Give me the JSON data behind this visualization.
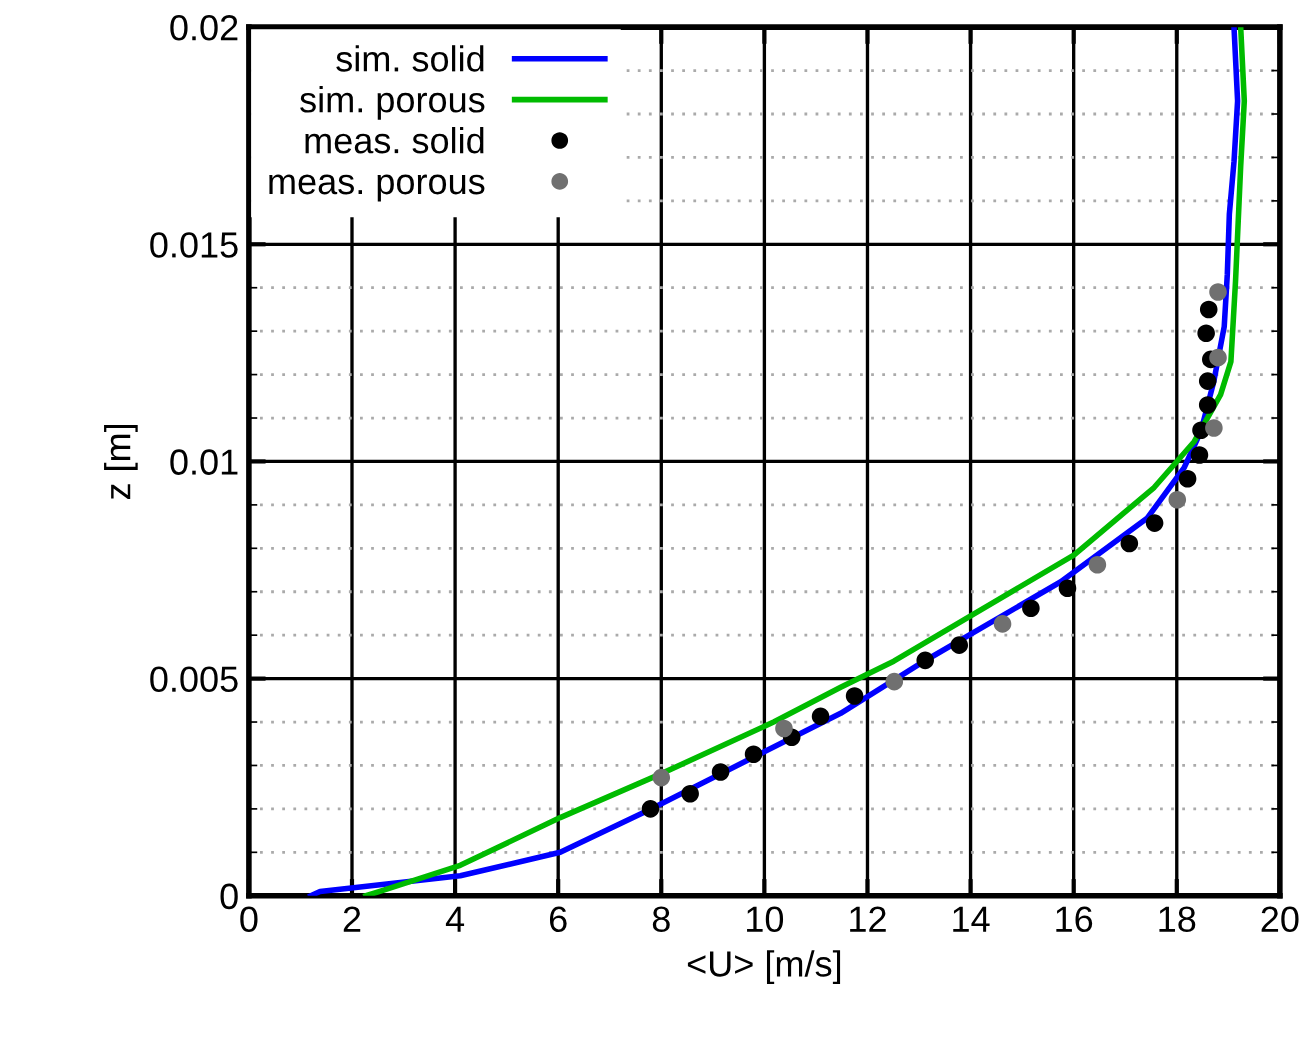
{
  "chart_data": {
    "type": "line",
    "xlabel": "<U> [m/s]",
    "ylabel": "z [m]",
    "xlim": [
      0,
      20
    ],
    "ylim": [
      0,
      0.02
    ],
    "xticks": [
      0,
      2,
      4,
      6,
      8,
      10,
      12,
      14,
      16,
      18,
      20
    ],
    "yticks": [
      0,
      0.005,
      0.01,
      0.015,
      0.02
    ],
    "grid": true,
    "legend": "top left",
    "series": [
      {
        "name": "sim. solid",
        "color": "#0000ff",
        "marker": "none",
        "x": [
          1.2,
          1.38,
          4.1,
          6.04,
          7.8,
          11.48,
          13.1,
          15.75,
          17.43,
          18.14,
          18.47,
          18.72,
          18.92,
          18.98,
          19.02,
          19.11,
          19.18,
          19.11
        ],
        "values": [
          0,
          0.0001,
          0.00046,
          0.001,
          0.002,
          0.0042,
          0.0054,
          0.00723,
          0.0087,
          0.00985,
          0.0107,
          0.01185,
          0.0131,
          0.0143,
          0.0157,
          0.0169,
          0.0183,
          0.02
        ]
      },
      {
        "name": "sim. porous",
        "color": "#00bb00",
        "marker": "none",
        "x": [
          2.27,
          2.54,
          4.1,
          6.04,
          7.98,
          10.18,
          11.48,
          12.51,
          16.01,
          17.56,
          18.34,
          18.85,
          19.05,
          19.14,
          19.24,
          19.31,
          19.24
        ],
        "values": [
          0,
          0.0001,
          0.0007,
          0.0018,
          0.0028,
          0.004,
          0.0048,
          0.0054,
          0.00785,
          0.0094,
          0.01046,
          0.01154,
          0.0123,
          0.01415,
          0.0168,
          0.0183,
          0.02
        ]
      },
      {
        "name": "meas. solid",
        "type": "scatter",
        "color": "#000000",
        "marker": "circle",
        "x": [
          7.79,
          8.56,
          9.15,
          9.79,
          10.53,
          11.09,
          11.75,
          13.12,
          13.78,
          15.17,
          15.88,
          17.08,
          17.57,
          18.21,
          18.44,
          18.47,
          18.6,
          18.6,
          18.66,
          18.57,
          18.62
        ],
        "values": [
          0.002,
          0.00235,
          0.00285,
          0.00326,
          0.00365,
          0.00413,
          0.0046,
          0.00542,
          0.00577,
          0.00662,
          0.00708,
          0.00811,
          0.00858,
          0.0096,
          0.01015,
          0.01072,
          0.0113,
          0.01185,
          0.01235,
          0.01295,
          0.0135
        ]
      },
      {
        "name": "meas. porous",
        "type": "scatter",
        "color": "#707070",
        "marker": "circle",
        "x": [
          8.0,
          10.38,
          12.52,
          14.62,
          16.46,
          18.01,
          18.72,
          18.8,
          18.8
        ],
        "values": [
          0.00272,
          0.00385,
          0.00493,
          0.00626,
          0.00762,
          0.00912,
          0.01077,
          0.01239,
          0.0139
        ]
      }
    ]
  }
}
